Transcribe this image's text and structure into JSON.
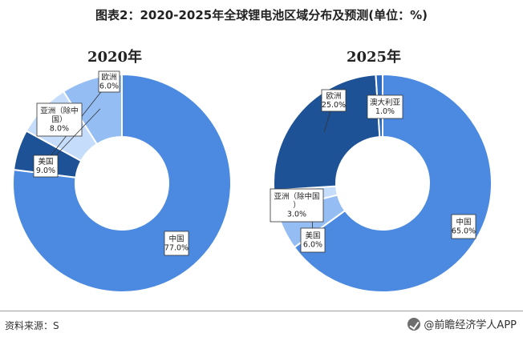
{
  "title": "图表2：2020-2025年全球锂电池区域分布及预测(单位：%)",
  "source_label": "资料来源：S",
  "brand_label": "@前瞻经济学人APP",
  "chart_data": [
    {
      "type": "pie",
      "title": "2020年",
      "categories": [
        "中国",
        "欧洲",
        "亚洲（除中国）",
        "美国"
      ],
      "values": [
        77.0,
        6.0,
        8.0,
        9.0
      ],
      "value_labels": [
        "77.0%",
        "6.0%",
        "8.0%",
        "9.0%"
      ],
      "colors": [
        "#4b8ae0",
        "#1d5296",
        "#c5dcfb",
        "#94bdf3"
      ]
    },
    {
      "type": "pie",
      "title": "2025年",
      "categories": [
        "中国",
        "美国",
        "亚洲（除中国）",
        "欧洲",
        "澳大利亚"
      ],
      "values": [
        65.0,
        6.0,
        3.0,
        25.0,
        1.0
      ],
      "value_labels": [
        "65.0%",
        "6.0%",
        "3.0%",
        "25.0%",
        "1.0%"
      ],
      "colors": [
        "#4b8ae0",
        "#94bdf3",
        "#c5dcfb",
        "#1d5296",
        "#2d6bc0"
      ]
    }
  ]
}
